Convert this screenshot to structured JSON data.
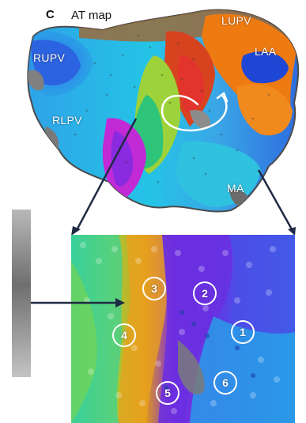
{
  "panel": {
    "letter": "C",
    "title": "AT map"
  },
  "anatomy_labels": {
    "lupv": "LUPV",
    "laa": "LAA",
    "rupv": "RUPV",
    "rlpv": "RLPV",
    "ma": "MA"
  },
  "regions": [
    "1",
    "2",
    "3",
    "4",
    "5",
    "6"
  ],
  "colors": {
    "background": "#ffffff",
    "label_text": "#ffffff",
    "arrow": "#1f2a44",
    "scale_bar": "#8f8f8f"
  }
}
